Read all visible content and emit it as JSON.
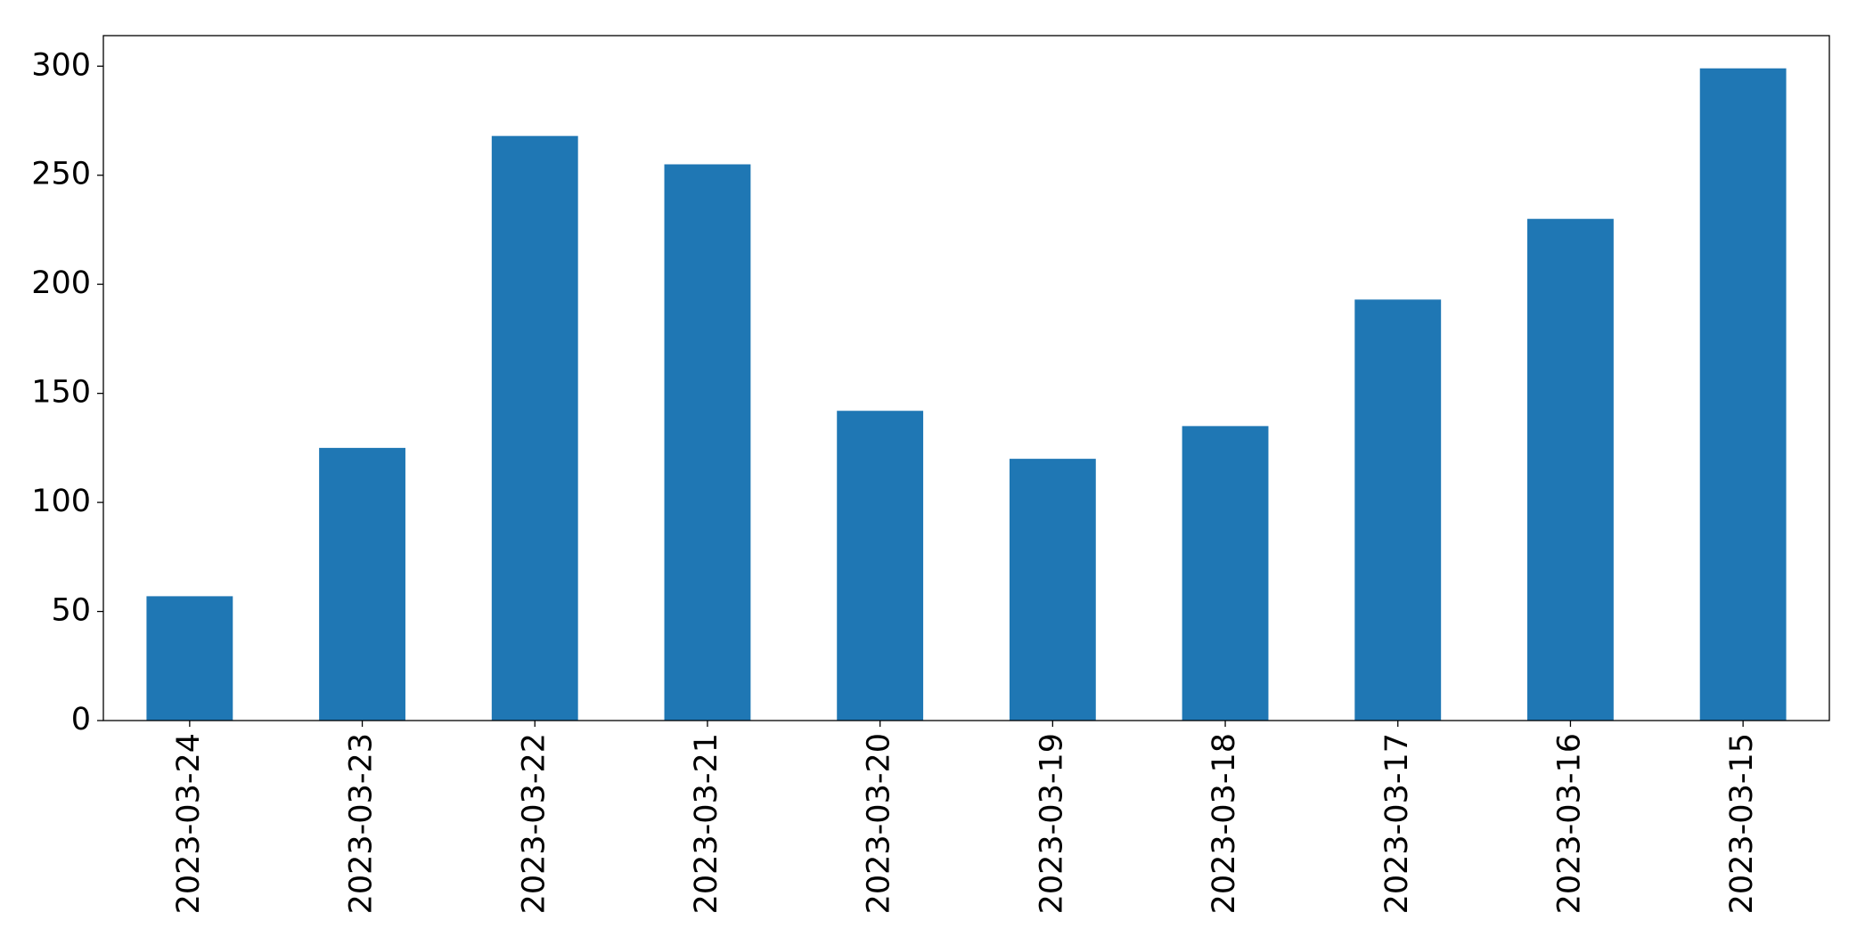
{
  "chart_data": {
    "type": "bar",
    "categories": [
      "2023-03-24",
      "2023-03-23",
      "2023-03-22",
      "2023-03-21",
      "2023-03-20",
      "2023-03-19",
      "2023-03-18",
      "2023-03-17",
      "2023-03-16",
      "2023-03-15"
    ],
    "values": [
      57,
      125,
      268,
      255,
      142,
      120,
      135,
      193,
      230,
      299
    ],
    "color": "#1f77b4",
    "ylim": [
      0,
      314
    ],
    "yticks": [
      0,
      50,
      100,
      150,
      200,
      250,
      300
    ],
    "grid": false
  }
}
